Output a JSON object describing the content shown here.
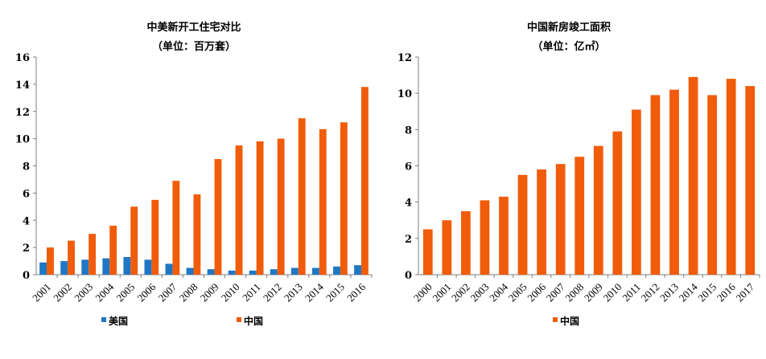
{
  "chart_data": [
    {
      "type": "bar",
      "title": "中美新开工住宅对比",
      "subtitle": "（单位：百万套）",
      "categories": [
        "2001",
        "2002",
        "2003",
        "2004",
        "2005",
        "2006",
        "2007",
        "2008",
        "2009",
        "2010",
        "2011",
        "2012",
        "2013",
        "2014",
        "2015",
        "2016"
      ],
      "series": [
        {
          "name": "美国",
          "color": "#1f77c4",
          "values": [
            0.9,
            1.0,
            1.1,
            1.2,
            1.3,
            1.1,
            0.8,
            0.5,
            0.4,
            0.3,
            0.3,
            0.4,
            0.5,
            0.5,
            0.6,
            0.7
          ]
        },
        {
          "name": "中国",
          "color": "#f05c0a",
          "values": [
            2.0,
            2.5,
            3.0,
            3.6,
            5.0,
            5.5,
            6.9,
            5.9,
            8.5,
            9.5,
            9.8,
            10.0,
            11.5,
            10.7,
            11.2,
            13.8
          ]
        }
      ],
      "ylim": [
        0,
        16
      ],
      "yticks": [
        0,
        2,
        4,
        6,
        8,
        10,
        12,
        14,
        16
      ],
      "legend_position": "bottom"
    },
    {
      "type": "bar",
      "title": "中国新房竣工面积",
      "subtitle": "（单位：亿㎡）",
      "categories": [
        "2000",
        "2001",
        "2002",
        "2003",
        "2004",
        "2005",
        "2006",
        "2007",
        "2008",
        "2009",
        "2010",
        "2011",
        "2012",
        "2013",
        "2014",
        "2015",
        "2016",
        "2017"
      ],
      "series": [
        {
          "name": "中国",
          "color": "#f05c0a",
          "values": [
            2.5,
            3.0,
            3.5,
            4.1,
            4.3,
            5.5,
            5.8,
            6.1,
            6.5,
            7.1,
            7.9,
            9.1,
            9.9,
            10.2,
            10.9,
            9.9,
            10.8,
            10.4
          ]
        }
      ],
      "ylim": [
        0,
        12
      ],
      "yticks": [
        0,
        2,
        4,
        6,
        8,
        10,
        12
      ],
      "legend_position": "bottom"
    }
  ]
}
